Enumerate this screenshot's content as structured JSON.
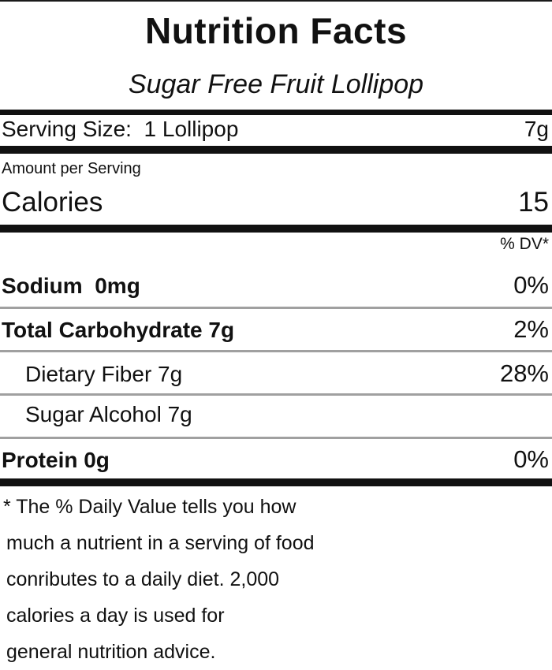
{
  "title": "Nutrition Facts",
  "product_name": "Sugar Free Fruit Lollipop",
  "serving": {
    "label": "Serving Size:  1 Lollipop",
    "weight": "7g"
  },
  "amount_per_serving": "Amount per Serving",
  "calories": {
    "label": "Calories",
    "value": "15"
  },
  "dv_header": "% DV*",
  "nutrients": [
    {
      "name": "Sodium  0mg",
      "dv": "0%"
    },
    {
      "name": "Total Carbohydrate 7g",
      "dv": "2%"
    },
    {
      "name": "Dietary Fiber 7g",
      "dv": "28%"
    },
    {
      "name": "Sugar Alcohol 7g",
      "dv": ""
    },
    {
      "name": "Protein 0g",
      "dv": "0%"
    }
  ],
  "footnote": [
    "* The % Daily Value tells you how",
    "much a nutrient in a serving of food",
    "conributes to a daily diet. 2,000",
    "calories a day is used for",
    "general nutrition advice."
  ]
}
